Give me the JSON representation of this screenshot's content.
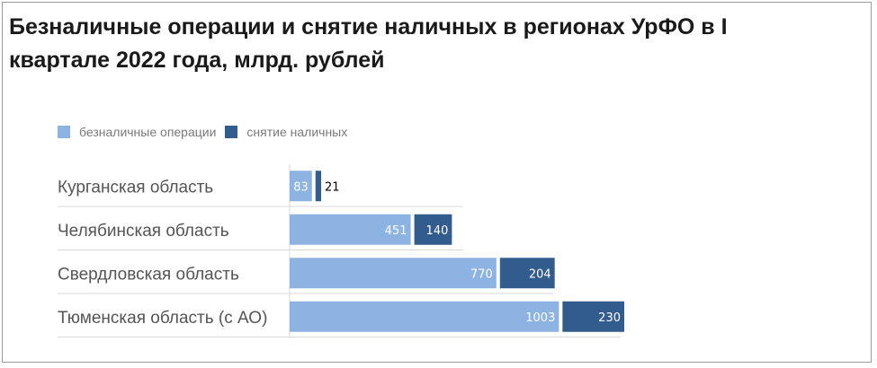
{
  "title_lines": [
    "Безналичные операции и снятие наличных в регионах УрФО в I",
    "квартале 2022 года, млрд. рублей"
  ],
  "colors": {
    "cashless": "#8db3e2",
    "cash": "#335c8e",
    "grid": "#d9d9d9",
    "category_text": "#555555",
    "legend_text": "#7a7a7a"
  },
  "chart_data": {
    "type": "bar",
    "orientation": "horizontal",
    "title": "Безналичные операции и снятие наличных в регионах УрФО в I квартале 2022 года, млрд. рублей",
    "legend_position": "top-left",
    "grid": true,
    "categories": [
      "Курганская область",
      "Челябинская  область",
      "Свердловская область",
      "Тюменская  область (с АО)"
    ],
    "series": [
      {
        "name": "безналичные операции",
        "values": [
          83,
          451,
          770,
          1003
        ]
      },
      {
        "name": "снятие наличных",
        "values": [
          21,
          140,
          204,
          230
        ]
      }
    ],
    "xlim": [
      0,
      1233
    ]
  }
}
